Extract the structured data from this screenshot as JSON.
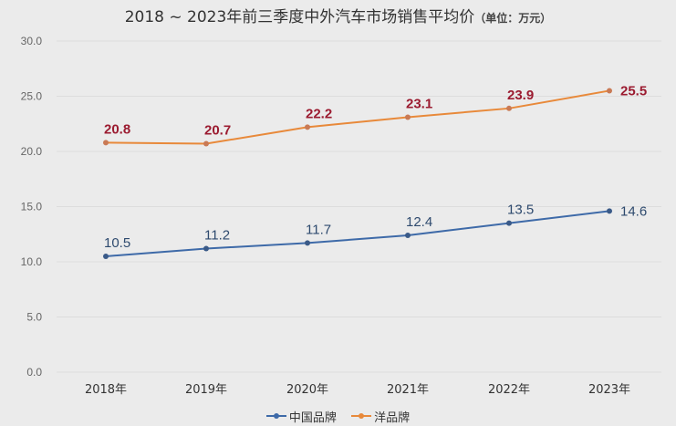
{
  "title": {
    "main": "2018 ~ 2023年前三季度中外汽车市场销售平均价",
    "unit": "（单位：万元）"
  },
  "legend": [
    {
      "name": "中国品牌",
      "color": "#3e6aa8"
    },
    {
      "name": "洋品牌",
      "color": "#e8893a"
    }
  ],
  "y_ticks": [
    "30.0",
    "25.0",
    "20.0",
    "15.0",
    "10.0",
    "5.0",
    "0.0"
  ],
  "x_ticks": [
    "2018年",
    "2019年",
    "2020年",
    "2021年",
    "2022年",
    "2023年"
  ],
  "chart_data": {
    "type": "line",
    "title": "2018 ~ 2023年前三季度中外汽车市场销售平均价（单位：万元）",
    "xlabel": "",
    "ylabel": "",
    "categories": [
      "2018年",
      "2019年",
      "2020年",
      "2021年",
      "2022年",
      "2023年"
    ],
    "series": [
      {
        "name": "中国品牌",
        "values": [
          10.5,
          11.2,
          11.7,
          12.4,
          13.5,
          14.6
        ],
        "color": "#3e6aa8",
        "labels": [
          "10.5",
          "11.2",
          "11.7",
          "12.4",
          "13.5",
          "14.6"
        ]
      },
      {
        "name": "洋品牌",
        "values": [
          20.8,
          20.7,
          22.2,
          23.1,
          23.9,
          25.5
        ],
        "color": "#e8893a",
        "labels": [
          "20.8",
          "20.7",
          "22.2",
          "23.1",
          "23.9",
          "25.5"
        ]
      }
    ],
    "ylim": [
      0,
      30
    ],
    "y_tick_step": 5,
    "grid": true,
    "legend_position": "bottom"
  }
}
